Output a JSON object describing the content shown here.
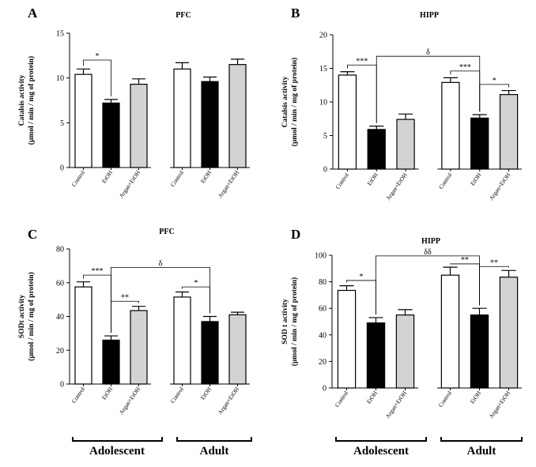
{
  "groups": [
    "Adolescent",
    "Adult"
  ],
  "categories": [
    "Control",
    "EtOH",
    "Argan+EtOH"
  ],
  "colors": {
    "Control": "#ffffff",
    "EtOH": "#000000",
    "Argan+EtOH": "#d3d3d3"
  },
  "chart_data": [
    {
      "type": "bar",
      "letter": "A",
      "title": "PFC",
      "ylabel": [
        "Catalsis activity",
        "(µmol / min / mg of protein)"
      ],
      "ylim": [
        0,
        15
      ],
      "yticks": [
        0,
        5,
        10,
        15
      ],
      "categories": [
        "Control",
        "EtOH",
        "Argan+EtOH"
      ],
      "series": [
        {
          "group": "Adolescent",
          "values": [
            10.4,
            7.2,
            9.3
          ],
          "errors": [
            0.6,
            0.4,
            0.6
          ]
        },
        {
          "group": "Adult",
          "values": [
            11.0,
            9.6,
            11.5
          ],
          "errors": [
            0.7,
            0.5,
            0.6
          ]
        }
      ],
      "annotations": [
        {
          "label": "*",
          "from": [
            0,
            0
          ],
          "to": [
            0,
            1
          ],
          "y": 12.0
        }
      ]
    },
    {
      "type": "bar",
      "letter": "B",
      "title": "HIPP",
      "ylabel": [
        "Catalsis activity",
        "(µmol / min / mg of protein)"
      ],
      "ylim": [
        0,
        20
      ],
      "yticks": [
        0,
        5,
        10,
        15,
        20
      ],
      "categories": [
        "Control",
        "EtOH",
        "Argan+EtOH"
      ],
      "series": [
        {
          "group": "Adolescent",
          "values": [
            14.0,
            5.9,
            7.4
          ],
          "errors": [
            0.5,
            0.5,
            0.8
          ]
        },
        {
          "group": "Adult",
          "values": [
            12.9,
            7.6,
            11.1
          ],
          "errors": [
            0.7,
            0.5,
            0.6
          ]
        }
      ],
      "annotations": [
        {
          "label": "***",
          "from": [
            0,
            0
          ],
          "to": [
            0,
            1
          ],
          "y": 15.5
        },
        {
          "label": "δ",
          "from": [
            0,
            1
          ],
          "to": [
            1,
            1
          ],
          "y": 16.8
        },
        {
          "label": "***",
          "from": [
            1,
            0
          ],
          "to": [
            1,
            1
          ],
          "y": 14.6
        },
        {
          "label": "*",
          "from": [
            1,
            1
          ],
          "to": [
            1,
            2
          ],
          "y": 12.6
        }
      ]
    },
    {
      "type": "bar",
      "letter": "C",
      "title": "PFC",
      "ylabel": [
        "SODt activity",
        "(µmol / min / mg of protein)"
      ],
      "ylim": [
        0,
        80
      ],
      "yticks": [
        0,
        20,
        40,
        60,
        80
      ],
      "categories": [
        "Control",
        "EtOH",
        "Argan+EtOH"
      ],
      "series": [
        {
          "group": "Adolescent",
          "values": [
            57.5,
            26.0,
            43.5
          ],
          "errors": [
            3.0,
            2.5,
            2.5
          ]
        },
        {
          "group": "Adult",
          "values": [
            51.5,
            37.0,
            41.0
          ],
          "errors": [
            3.0,
            3.0,
            1.5
          ]
        }
      ],
      "annotations": [
        {
          "label": "***",
          "from": [
            0,
            0
          ],
          "to": [
            0,
            1
          ],
          "y": 64.5
        },
        {
          "label": "δ",
          "from": [
            0,
            1
          ],
          "to": [
            1,
            1
          ],
          "y": 69.0
        },
        {
          "label": "**",
          "from": [
            0,
            1
          ],
          "to": [
            0,
            2
          ],
          "y": 49.0
        },
        {
          "label": "*",
          "from": [
            1,
            0
          ],
          "to": [
            1,
            1
          ],
          "y": 57.5
        }
      ]
    },
    {
      "type": "bar",
      "letter": "D",
      "title": "HIPP",
      "ylabel": [
        "SOD t activity",
        "(µmol / min / mg of protein)"
      ],
      "ylim": [
        0,
        100
      ],
      "yticks": [
        0,
        20,
        40,
        60,
        80,
        100
      ],
      "categories": [
        "Control",
        "EtOH",
        "Argan+EtOH"
      ],
      "series": [
        {
          "group": "Adolescent",
          "values": [
            73.5,
            49.0,
            55.0
          ],
          "errors": [
            3.5,
            4.0,
            4.0
          ]
        },
        {
          "group": "Adult",
          "values": [
            85.0,
            55.0,
            83.5
          ],
          "errors": [
            6.0,
            5.0,
            5.0
          ]
        }
      ],
      "annotations": [
        {
          "label": "*",
          "from": [
            0,
            0
          ],
          "to": [
            0,
            1
          ],
          "y": 81.0
        },
        {
          "label": "δδ",
          "from": [
            0,
            1
          ],
          "to": [
            1,
            1
          ],
          "y": 99.5
        },
        {
          "label": "**",
          "from": [
            1,
            0
          ],
          "to": [
            1,
            1
          ],
          "y": 93.5
        },
        {
          "label": "**",
          "from": [
            1,
            1
          ],
          "to": [
            1,
            2
          ],
          "y": 91.5
        }
      ]
    }
  ]
}
